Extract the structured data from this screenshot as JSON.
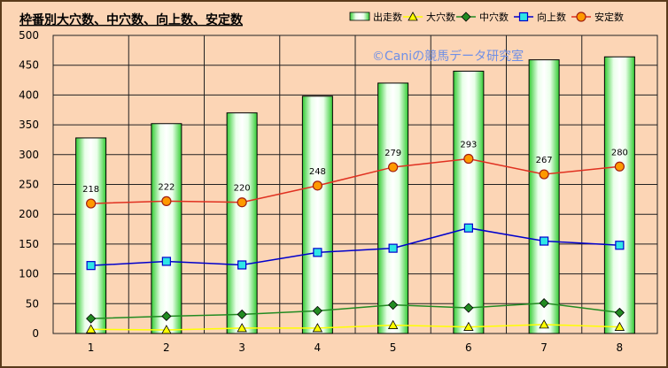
{
  "chart_data": {
    "type": "bar+line",
    "title": "枠番別大穴数、中穴数、向上数、安定数",
    "watermark": "©Caniの競馬データ研究室",
    "categories": [
      "1",
      "2",
      "3",
      "4",
      "5",
      "6",
      "7",
      "8"
    ],
    "ylim": [
      0,
      500
    ],
    "yticks": [
      "0",
      "50",
      "100",
      "150",
      "200",
      "250",
      "300",
      "350",
      "400",
      "450",
      "500"
    ],
    "grid": true,
    "legend_position": "top-right",
    "bar_series": {
      "name": "出走数",
      "color": "#33cc33",
      "values": [
        328,
        352,
        370,
        398,
        420,
        440,
        459,
        464
      ]
    },
    "line_series": [
      {
        "name": "大穴数",
        "color": "#ffff00",
        "marker": "triangle",
        "values": [
          7,
          6,
          9,
          9,
          14,
          11,
          15,
          11
        ]
      },
      {
        "name": "中穴数",
        "color": "#228b22",
        "marker": "diamond",
        "values": [
          25,
          29,
          32,
          38,
          48,
          43,
          51,
          35
        ]
      },
      {
        "name": "向上数",
        "color": "#0000cc",
        "marker": "square",
        "values": [
          114,
          121,
          115,
          136,
          143,
          177,
          155,
          148
        ]
      },
      {
        "name": "安定数",
        "color": "#e03020",
        "marker": "circle",
        "values": [
          218,
          222,
          220,
          248,
          279,
          293,
          267,
          280
        ],
        "data_labels": [
          "218",
          "222",
          "220",
          "248",
          "279",
          "293",
          "267",
          "280"
        ]
      }
    ]
  }
}
